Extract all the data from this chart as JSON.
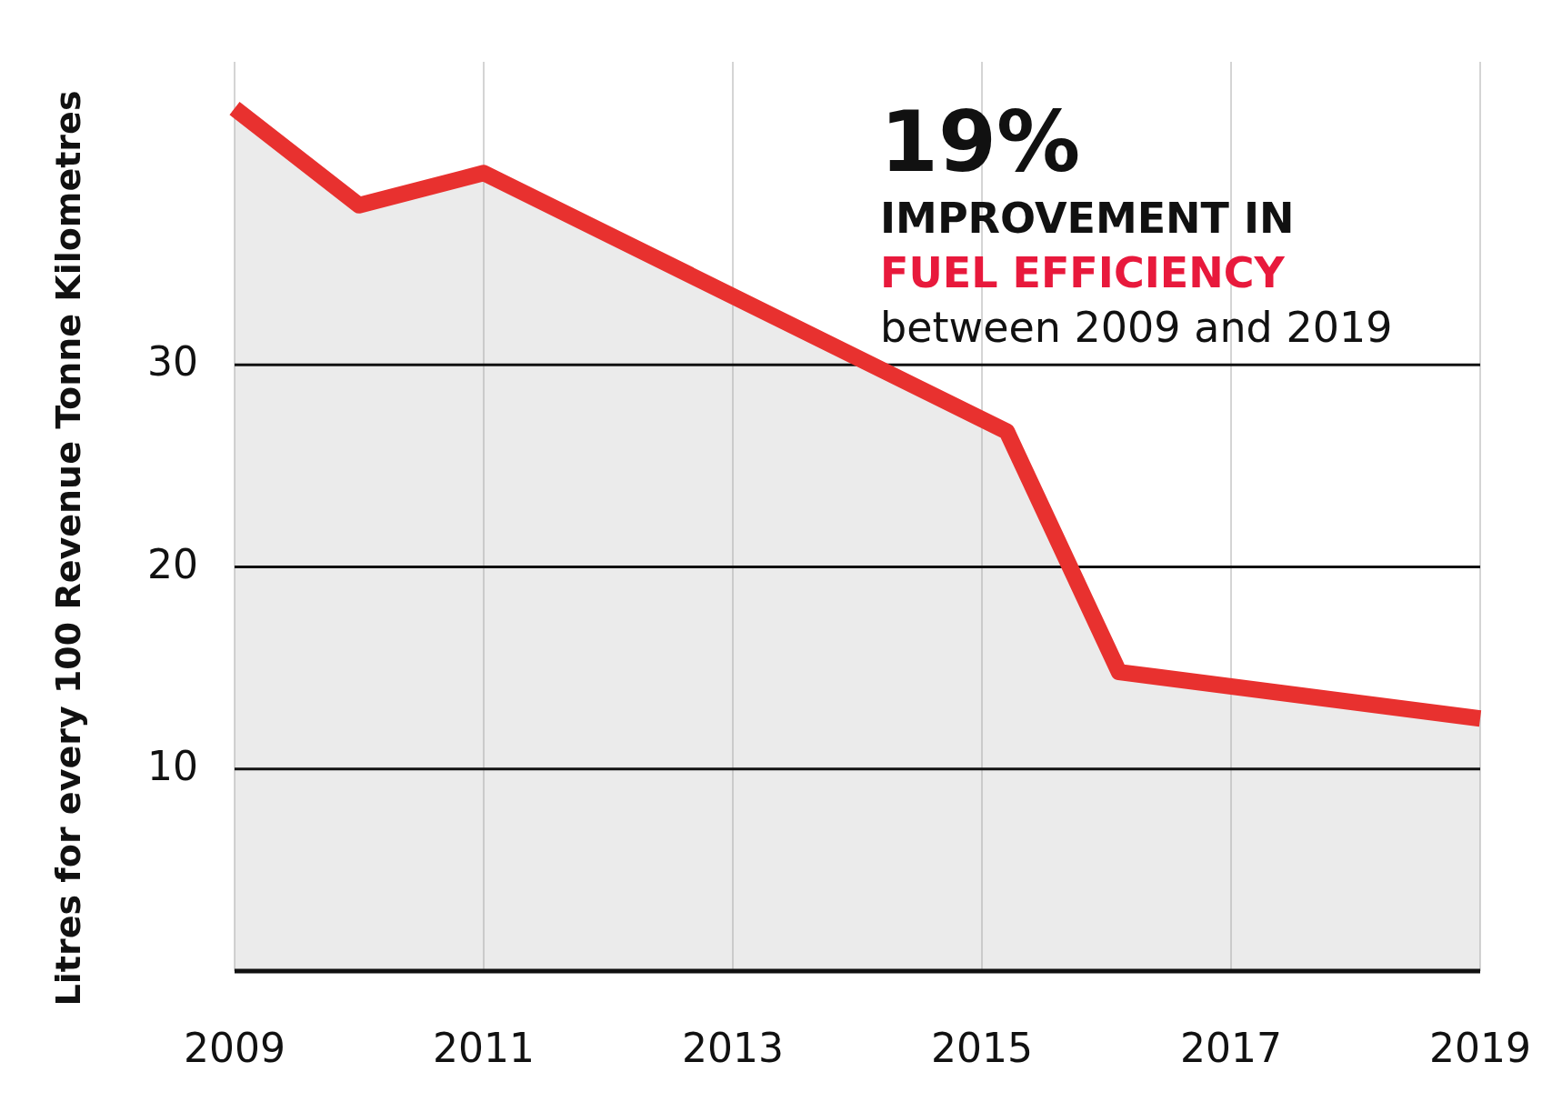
{
  "chart_data": {
    "type": "area",
    "ylabel": "Litres for every 100 Revenue Tonne Kilometres",
    "x": [
      2009,
      2010,
      2011,
      2015.2,
      2016.1,
      2019
    ],
    "series": [
      {
        "color": "#e8312f",
        "values": [
          42.7,
          37.9,
          39.5,
          26.7,
          14.8,
          12.5
        ]
      }
    ],
    "xlim": [
      2009,
      2019
    ],
    "xticks": [
      2009,
      2011,
      2013,
      2015,
      2017,
      2019
    ],
    "ylim": [
      0,
      45
    ],
    "yticks": [
      10,
      20,
      30
    ],
    "grid": true,
    "annotations": [
      "19%",
      "IMPROVEMENT IN",
      "FUEL EFFICIENCY",
      "between 2009 and 2019"
    ]
  }
}
